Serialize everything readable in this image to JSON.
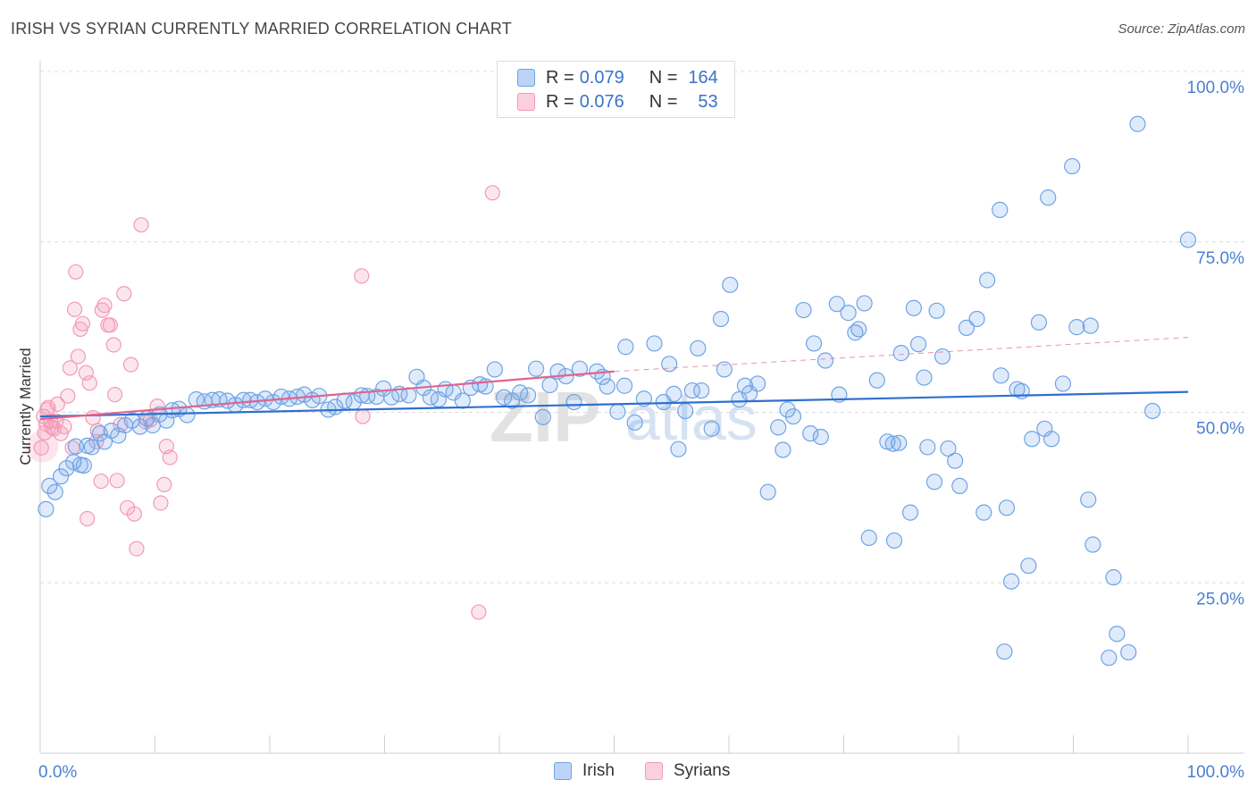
{
  "header": {
    "title": "IRISH VS SYRIAN CURRENTLY MARRIED CORRELATION CHART",
    "source": "Source: ZipAtlas.com"
  },
  "legend": {
    "irish": {
      "r_label": "R =",
      "r_value": "0.079",
      "n_label": "N =",
      "n_value": "164"
    },
    "syrians": {
      "r_label": "R =",
      "r_value": "0.076",
      "n_label": "N =",
      "n_value": "53"
    }
  },
  "watermark": {
    "zip": "ZIP",
    "atlas": "atlas"
  },
  "colors": {
    "irish": "#6fa3e6",
    "irish_line": "#2f6fcf",
    "syrians": "#f29ab6",
    "syrians_line": "#e0648e",
    "axis_label": "#4a7fd0"
  },
  "chart_data": {
    "type": "scatter",
    "title": "IRISH VS SYRIAN CURRENTLY MARRIED CORRELATION CHART",
    "xlabel": "",
    "ylabel": "Currently Married",
    "xlim": [
      0,
      100
    ],
    "ylim": [
      0,
      100
    ],
    "x_tick_labels": [
      "0.0%",
      "100.0%"
    ],
    "y_tick_labels": [
      "25.0%",
      "50.0%",
      "75.0%",
      "100.0%"
    ],
    "grid": true,
    "series": [
      {
        "name": "Irish",
        "color": "#6fa3e6",
        "trend": [
          [
            0,
            49.4
          ],
          [
            100,
            53.0
          ]
        ],
        "points": [
          [
            0.5,
            35.8
          ],
          [
            0.8,
            39.2
          ],
          [
            1.3,
            38.3
          ],
          [
            1.8,
            40.6
          ],
          [
            2.3,
            41.8
          ],
          [
            2.9,
            42.7
          ],
          [
            3.1,
            45.0
          ],
          [
            3.5,
            42.3
          ],
          [
            3.8,
            42.2
          ],
          [
            4.1,
            45.1
          ],
          [
            4.5,
            44.9
          ],
          [
            5.2,
            46.9
          ],
          [
            5.6,
            45.7
          ],
          [
            6.2,
            47.3
          ],
          [
            6.8,
            46.6
          ],
          [
            7.4,
            48.1
          ],
          [
            8.0,
            48.8
          ],
          [
            8.7,
            47.9
          ],
          [
            9.3,
            49.1
          ],
          [
            9.8,
            48.1
          ],
          [
            10.4,
            49.7
          ],
          [
            11.0,
            48.8
          ],
          [
            11.5,
            50.3
          ],
          [
            12.1,
            50.5
          ],
          [
            12.8,
            49.6
          ],
          [
            13.6,
            51.9
          ],
          [
            14.3,
            51.6
          ],
          [
            15.0,
            51.8
          ],
          [
            15.6,
            51.9
          ],
          [
            16.3,
            51.7
          ],
          [
            17.0,
            51.1
          ],
          [
            17.7,
            51.8
          ],
          [
            18.3,
            51.8
          ],
          [
            18.9,
            51.5
          ],
          [
            19.6,
            52.0
          ],
          [
            20.3,
            51.5
          ],
          [
            21.0,
            52.3
          ],
          [
            21.7,
            52.0
          ],
          [
            22.4,
            52.3
          ],
          [
            23.0,
            52.6
          ],
          [
            23.7,
            51.8
          ],
          [
            24.3,
            52.4
          ],
          [
            25.1,
            50.4
          ],
          [
            25.7,
            50.8
          ],
          [
            26.5,
            51.7
          ],
          [
            27.3,
            51.5
          ],
          [
            28.0,
            52.5
          ],
          [
            28.5,
            52.4
          ],
          [
            29.3,
            52.3
          ],
          [
            29.9,
            53.5
          ],
          [
            30.6,
            52.2
          ],
          [
            31.3,
            52.7
          ],
          [
            32.1,
            52.5
          ],
          [
            32.8,
            55.2
          ],
          [
            33.4,
            53.6
          ],
          [
            34.0,
            52.2
          ],
          [
            34.7,
            51.9
          ],
          [
            35.3,
            53.4
          ],
          [
            36.0,
            52.9
          ],
          [
            36.8,
            51.7
          ],
          [
            37.5,
            53.6
          ],
          [
            38.3,
            54.1
          ],
          [
            38.8,
            53.8
          ],
          [
            39.6,
            56.3
          ],
          [
            40.4,
            52.2
          ],
          [
            41.1,
            51.7
          ],
          [
            41.8,
            52.9
          ],
          [
            42.5,
            52.5
          ],
          [
            43.2,
            56.4
          ],
          [
            43.8,
            49.3
          ],
          [
            44.4,
            54.0
          ],
          [
            45.1,
            56.0
          ],
          [
            45.8,
            55.3
          ],
          [
            46.5,
            51.5
          ],
          [
            47.0,
            56.4
          ],
          [
            48.5,
            56.0
          ],
          [
            49.0,
            55.2
          ],
          [
            49.4,
            53.8
          ],
          [
            50.3,
            50.1
          ],
          [
            50.9,
            53.9
          ],
          [
            51.0,
            59.6
          ],
          [
            51.8,
            48.5
          ],
          [
            52.6,
            52.0
          ],
          [
            53.5,
            60.1
          ],
          [
            54.3,
            51.5
          ],
          [
            54.8,
            57.1
          ],
          [
            55.2,
            52.7
          ],
          [
            55.6,
            44.6
          ],
          [
            56.2,
            50.2
          ],
          [
            56.8,
            53.2
          ],
          [
            57.3,
            59.4
          ],
          [
            57.6,
            53.2
          ],
          [
            58.5,
            47.6
          ],
          [
            59.3,
            63.7
          ],
          [
            59.6,
            56.3
          ],
          [
            60.1,
            68.7
          ],
          [
            60.9,
            51.9
          ],
          [
            61.4,
            53.9
          ],
          [
            61.8,
            52.8
          ],
          [
            62.5,
            54.2
          ],
          [
            63.4,
            38.3
          ],
          [
            64.3,
            47.8
          ],
          [
            64.7,
            44.5
          ],
          [
            65.1,
            50.4
          ],
          [
            65.6,
            49.4
          ],
          [
            66.5,
            65.0
          ],
          [
            67.1,
            46.9
          ],
          [
            67.4,
            60.1
          ],
          [
            68.0,
            46.4
          ],
          [
            68.4,
            57.6
          ],
          [
            69.4,
            65.9
          ],
          [
            69.6,
            52.6
          ],
          [
            70.4,
            64.6
          ],
          [
            71.0,
            61.7
          ],
          [
            71.3,
            62.2
          ],
          [
            71.8,
            66.0
          ],
          [
            72.2,
            31.6
          ],
          [
            72.9,
            54.7
          ],
          [
            73.8,
            45.7
          ],
          [
            74.4,
            31.2
          ],
          [
            74.3,
            45.4
          ],
          [
            74.8,
            45.5
          ],
          [
            75.0,
            58.7
          ],
          [
            75.8,
            35.3
          ],
          [
            76.1,
            65.3
          ],
          [
            76.5,
            60.0
          ],
          [
            77.0,
            55.1
          ],
          [
            77.3,
            44.9
          ],
          [
            77.9,
            39.8
          ],
          [
            78.1,
            64.9
          ],
          [
            78.6,
            58.2
          ],
          [
            79.1,
            44.7
          ],
          [
            79.7,
            42.9
          ],
          [
            80.1,
            39.2
          ],
          [
            80.7,
            62.4
          ],
          [
            81.6,
            63.7
          ],
          [
            82.2,
            35.3
          ],
          [
            82.5,
            69.4
          ],
          [
            83.6,
            79.7
          ],
          [
            83.7,
            55.4
          ],
          [
            84.0,
            14.9
          ],
          [
            84.2,
            36.0
          ],
          [
            84.6,
            25.2
          ],
          [
            85.1,
            53.4
          ],
          [
            85.5,
            53.1
          ],
          [
            86.1,
            27.5
          ],
          [
            86.4,
            46.1
          ],
          [
            87.0,
            63.2
          ],
          [
            87.5,
            47.6
          ],
          [
            87.8,
            81.5
          ],
          [
            88.1,
            46.1
          ],
          [
            89.1,
            54.2
          ],
          [
            89.9,
            86.1
          ],
          [
            90.3,
            62.5
          ],
          [
            91.5,
            62.7
          ],
          [
            91.3,
            37.2
          ],
          [
            91.7,
            30.6
          ],
          [
            93.1,
            14.0
          ],
          [
            93.5,
            25.8
          ],
          [
            93.8,
            17.5
          ],
          [
            94.8,
            14.8
          ],
          [
            95.6,
            92.3
          ],
          [
            96.9,
            50.2
          ],
          [
            100.0,
            75.3
          ]
        ]
      },
      {
        "name": "Syrians",
        "color": "#f29ab6",
        "trend": [
          [
            0,
            49.0
          ],
          [
            50,
            56.0
          ]
        ],
        "trend_extension": [
          [
            50,
            56.0
          ],
          [
            100,
            61.0
          ]
        ],
        "points": [
          [
            0.3,
            49.4
          ],
          [
            0.6,
            50.4
          ],
          [
            0.9,
            48.7
          ],
          [
            1.2,
            47.6
          ],
          [
            1.5,
            51.2
          ],
          [
            1.8,
            46.9
          ],
          [
            2.1,
            47.9
          ],
          [
            2.4,
            52.4
          ],
          [
            2.6,
            56.5
          ],
          [
            2.8,
            44.8
          ],
          [
            3.0,
            65.1
          ],
          [
            3.1,
            70.6
          ],
          [
            3.3,
            58.2
          ],
          [
            3.5,
            62.2
          ],
          [
            3.7,
            63.0
          ],
          [
            4.0,
            55.8
          ],
          [
            4.1,
            34.4
          ],
          [
            4.3,
            54.3
          ],
          [
            4.6,
            49.2
          ],
          [
            4.9,
            45.7
          ],
          [
            5.0,
            47.3
          ],
          [
            5.3,
            39.9
          ],
          [
            5.4,
            65.0
          ],
          [
            5.6,
            65.7
          ],
          [
            5.9,
            62.8
          ],
          [
            6.1,
            62.8
          ],
          [
            6.4,
            59.9
          ],
          [
            6.5,
            52.6
          ],
          [
            6.7,
            40.0
          ],
          [
            7.0,
            48.2
          ],
          [
            7.3,
            67.4
          ],
          [
            7.6,
            36.0
          ],
          [
            7.9,
            57.0
          ],
          [
            8.2,
            35.1
          ],
          [
            8.4,
            30.0
          ],
          [
            8.8,
            77.5
          ],
          [
            9.2,
            48.6
          ],
          [
            9.6,
            48.9
          ],
          [
            10.2,
            50.9
          ],
          [
            10.5,
            36.7
          ],
          [
            10.8,
            39.4
          ],
          [
            11.0,
            45.0
          ],
          [
            11.3,
            43.4
          ],
          [
            28.0,
            70.0
          ],
          [
            28.1,
            49.4
          ],
          [
            38.2,
            20.7
          ],
          [
            39.4,
            82.2
          ],
          [
            0.1,
            44.8
          ],
          [
            0.4,
            47.0
          ],
          [
            0.5,
            48.3
          ],
          [
            0.7,
            50.7
          ],
          [
            1.0,
            47.8
          ],
          [
            1.4,
            48.7
          ]
        ]
      }
    ]
  }
}
